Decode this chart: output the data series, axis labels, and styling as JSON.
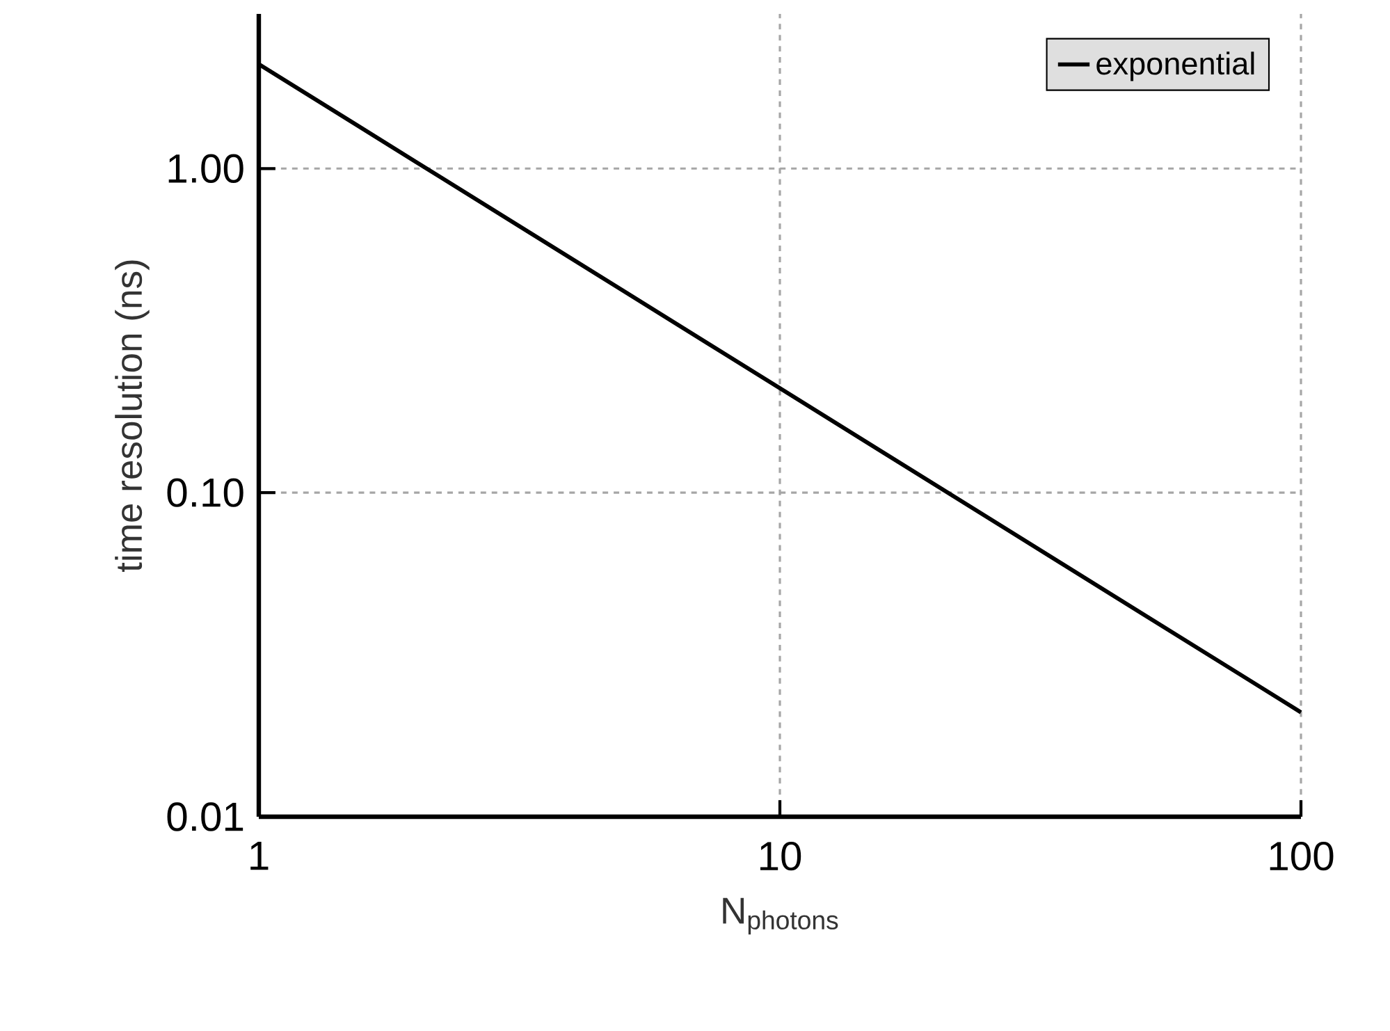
{
  "chart_data": {
    "type": "line",
    "xlabel": "N$_{photons}$",
    "ylabel": "time resolution (ns)",
    "log": "xy",
    "xlim": [
      1,
      100
    ],
    "ylim": [
      0.01,
      3
    ],
    "xticks": [
      1,
      10,
      100
    ],
    "yticks": [
      {
        "value": 0.01,
        "label": "0.01"
      },
      {
        "value": 0.1,
        "label": "0.10"
      },
      {
        "value": 1,
        "label": "1.00"
      }
    ],
    "grid": true,
    "legend": "top right",
    "marker": "none",
    "line_style": "solid",
    "series": [
      {
        "name": "exponential",
        "color": "#000000",
        "x": [
          1,
          2,
          5,
          10,
          20,
          50,
          100
        ],
        "values": [
          2.1,
          1.05,
          0.42,
          0.21,
          0.105,
          0.042,
          0.021
        ]
      }
    ]
  }
}
